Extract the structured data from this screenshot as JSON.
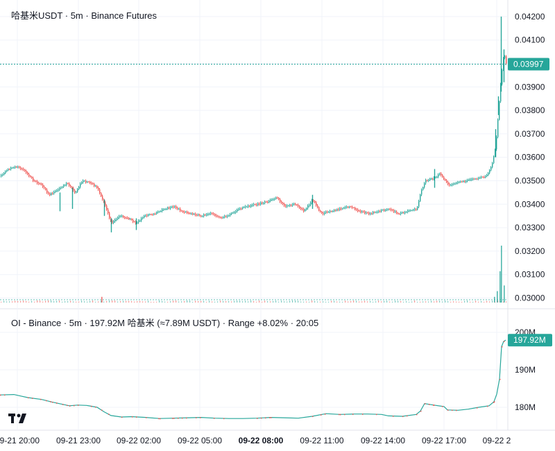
{
  "main_pane": {
    "title": "哈基米USDT · 5m · Binance Futures",
    "last_price_label": "0.03997",
    "accent_up": "#26a69a",
    "accent_down": "#ef5350"
  },
  "oi_pane": {
    "title": "OI - Binance · 5m · 197.92M 哈基米 (≈7.89M USDT) · Range +8.02% · 20:05",
    "last_value_label": "197.92M"
  },
  "x_axis": {
    "ticks": [
      "09-21 20:00",
      "09-21 23:00",
      "09-22 02:00",
      "09-22 05:00",
      "09-22 08:00",
      "09-22 11:00",
      "09-22 14:00",
      "09-22 17:00",
      "09-22 2"
    ],
    "bold_tick": "09-22 08:00"
  },
  "logo": {
    "icon": "tradingview-logo-icon",
    "text": "TV"
  },
  "chart_data": [
    {
      "type": "candlestick",
      "title": "哈基米USDT · 5m · Binance Futures",
      "y_ticks": [
        "0.04200",
        "0.04100",
        "0.04000",
        "0.03900",
        "0.03800",
        "0.03700",
        "0.03600",
        "0.03500",
        "0.03400",
        "0.03300",
        "0.03200",
        "0.03100",
        "0.03000"
      ],
      "ylim": [
        0.02985,
        0.04245
      ],
      "last_price": 0.03997,
      "close_trend": [
        [
          0,
          0.0352
        ],
        [
          12,
          0.0355
        ],
        [
          24,
          0.0356
        ],
        [
          36,
          0.0354
        ],
        [
          48,
          0.035
        ],
        [
          60,
          0.0348
        ],
        [
          70,
          0.0344
        ],
        [
          82,
          0.0346
        ],
        [
          96,
          0.0349
        ],
        [
          108,
          0.0345
        ],
        [
          118,
          0.035
        ],
        [
          130,
          0.0349
        ],
        [
          140,
          0.0347
        ],
        [
          150,
          0.034
        ],
        [
          160,
          0.0332
        ],
        [
          172,
          0.0335
        ],
        [
          184,
          0.0334
        ],
        [
          196,
          0.0332
        ],
        [
          208,
          0.0335
        ],
        [
          222,
          0.0336
        ],
        [
          236,
          0.0338
        ],
        [
          250,
          0.0339
        ],
        [
          262,
          0.0337
        ],
        [
          276,
          0.0336
        ],
        [
          290,
          0.0335
        ],
        [
          304,
          0.0336
        ],
        [
          316,
          0.0334
        ],
        [
          330,
          0.03355
        ],
        [
          344,
          0.0338
        ],
        [
          356,
          0.0339
        ],
        [
          370,
          0.034
        ],
        [
          384,
          0.0341
        ],
        [
          398,
          0.0343
        ],
        [
          410,
          0.0339
        ],
        [
          424,
          0.034
        ],
        [
          438,
          0.0337
        ],
        [
          450,
          0.0342
        ],
        [
          462,
          0.0336
        ],
        [
          476,
          0.0337
        ],
        [
          490,
          0.0338
        ],
        [
          504,
          0.0339
        ],
        [
          518,
          0.0337
        ],
        [
          532,
          0.0336
        ],
        [
          546,
          0.0337
        ],
        [
          560,
          0.0338
        ],
        [
          574,
          0.0336
        ],
        [
          588,
          0.0337
        ],
        [
          600,
          0.0338
        ],
        [
          606,
          0.0345
        ],
        [
          612,
          0.035
        ],
        [
          624,
          0.0351
        ],
        [
          634,
          0.0353
        ],
        [
          646,
          0.0348
        ],
        [
          658,
          0.0349
        ],
        [
          672,
          0.035
        ],
        [
          686,
          0.0351
        ],
        [
          700,
          0.0352
        ],
        [
          708,
          0.0356
        ],
        [
          714,
          0.0365
        ],
        [
          718,
          0.038
        ],
        [
          722,
          0.0395
        ],
        [
          726,
          0.0405
        ],
        [
          729,
          0.03997
        ]
      ],
      "spikes": [
        {
          "x": 722,
          "high": 0.042,
          "low": 0.0388
        },
        {
          "x": 726,
          "high": 0.0406,
          "low": 0.0392
        },
        {
          "x": 718,
          "high": 0.0386,
          "low": 0.0378
        },
        {
          "x": 714,
          "high": 0.0372,
          "low": 0.036
        },
        {
          "x": 150,
          "high": 0.0342,
          "low": 0.0335
        },
        {
          "x": 160,
          "high": 0.0334,
          "low": 0.0328
        },
        {
          "x": 196,
          "high": 0.0334,
          "low": 0.0329
        },
        {
          "x": 86,
          "high": 0.0345,
          "low": 0.0337
        },
        {
          "x": 104,
          "high": 0.0347,
          "low": 0.0338
        },
        {
          "x": 450,
          "high": 0.0344,
          "low": 0.0338
        },
        {
          "x": 626,
          "high": 0.0355,
          "low": 0.0347
        }
      ],
      "volume_spikes": [
        {
          "x": 722,
          "value": 1.0
        },
        {
          "x": 720,
          "value": 0.55
        },
        {
          "x": 726,
          "value": 0.3
        },
        {
          "x": 716,
          "value": 0.2
        },
        {
          "x": 712,
          "value": 0.1
        },
        {
          "x": 146,
          "value": 0.1
        }
      ]
    },
    {
      "type": "line",
      "title": "OI - Binance · 5m · 197.92M 哈基米 (≈7.89M USDT) · Range +8.02% · 20:05",
      "y_ticks": [
        "200M",
        "190M",
        "180M"
      ],
      "ylim": [
        175.5,
        200.5
      ],
      "last_value": 197.92,
      "series": [
        {
          "points": [
            [
              0,
              183.3
            ],
            [
              20,
              183.4
            ],
            [
              30,
              183.0
            ],
            [
              40,
              182.6
            ],
            [
              60,
              182.1
            ],
            [
              75,
              181.4
            ],
            [
              90,
              180.8
            ],
            [
              100,
              180.4
            ],
            [
              112,
              180.6
            ],
            [
              125,
              180.5
            ],
            [
              140,
              180.0
            ],
            [
              150,
              178.8
            ],
            [
              160,
              177.8
            ],
            [
              175,
              177.4
            ],
            [
              190,
              177.5
            ],
            [
              210,
              177.3
            ],
            [
              230,
              177.0
            ],
            [
              250,
              177.1
            ],
            [
              270,
              177.2
            ],
            [
              290,
              177.3
            ],
            [
              310,
              177.1
            ],
            [
              330,
              177.0
            ],
            [
              350,
              177.0
            ],
            [
              370,
              177.1
            ],
            [
              390,
              177.3
            ],
            [
              410,
              177.2
            ],
            [
              430,
              177.1
            ],
            [
              450,
              177.6
            ],
            [
              470,
              178.3
            ],
            [
              490,
              178.1
            ],
            [
              510,
              178.2
            ],
            [
              530,
              178.2
            ],
            [
              550,
              178.1
            ],
            [
              560,
              177.7
            ],
            [
              580,
              177.6
            ],
            [
              600,
              178.1
            ],
            [
              606,
              179.0
            ],
            [
              612,
              181.0
            ],
            [
              625,
              180.6
            ],
            [
              640,
              180.2
            ],
            [
              645,
              179.3
            ],
            [
              660,
              179.2
            ],
            [
              675,
              179.5
            ],
            [
              690,
              180.0
            ],
            [
              705,
              180.4
            ],
            [
              712,
              181.5
            ],
            [
              716,
              183.5
            ],
            [
              720,
              187.5
            ],
            [
              723,
              196.2
            ],
            [
              726,
              197.6
            ],
            [
              729,
              197.92
            ]
          ]
        }
      ]
    }
  ]
}
